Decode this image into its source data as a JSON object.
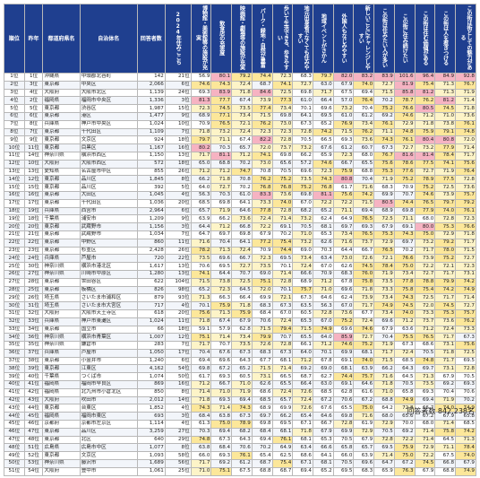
{
  "headers": [
    "順位",
    "昨年",
    "都道府県名",
    "自治体名",
    "回答者数",
    "2024年住みここち",
    "博物館・美術館等の施設が充実",
    "飲食店の充実度",
    "映画館・劇場等の施設が充実",
    "パーク・緑地・自然が豊富",
    "歩いて生活できる、歩きやすい",
    "地元出身者でなくても住みやすい",
    "地域イベントがさかん",
    "外国人もなじみやすい",
    "新しいことにチャレンジしやすい",
    "この街は住みたい人が多い",
    "この街に住み続けたい",
    "この街は住む価値がある",
    "この街は人を惹きつける",
    "この街は街としての魅力がある"
  ],
  "rows": [
    [
      "1位",
      "1位",
      "沖縄県",
      "中頭郡北谷町",
      "142",
      "21位",
      "56.9",
      "80.1",
      "79.2",
      "74.4",
      "72.3",
      "68.3",
      "79.7",
      "82.0",
      "83.2",
      "83.9",
      "101.6",
      "96.4",
      "84.9",
      "92.8"
    ],
    [
      "2位",
      "3位",
      "東京都",
      "中央区",
      "2,066",
      "6位",
      "74.6",
      "74.3",
      "72.4",
      "68.7",
      "74.1",
      "72.7",
      "63.0",
      "67.9",
      "74.0",
      "72.7",
      "81.9",
      "75.4",
      "71.3",
      "76.7"
    ],
    [
      "3位",
      "4位",
      "大阪府",
      "大阪市北区",
      "1,139",
      "24位",
      "69.3",
      "83.9",
      "71.8",
      "84.6",
      "72.5",
      "69.8",
      "71.7",
      "67.5",
      "69.4",
      "71.5",
      "85.8",
      "81.2",
      "71.3",
      "71.9"
    ],
    [
      "4位",
      "2位",
      "福岡県",
      "福岡市中央区",
      "1,336",
      "3位",
      "81.3",
      "77.7",
      "67.4",
      "73.9",
      "77.3",
      "61.0",
      "66.4",
      "57.0",
      "76.4",
      "70.2",
      "78.7",
      "76.2",
      "81.2",
      "71.4"
    ],
    [
      "5位",
      "5位",
      "東京都",
      "渋谷区",
      "1,987",
      "15位",
      "72.3",
      "74.5",
      "73.5",
      "77.4",
      "73.4",
      "70.1",
      "69.6",
      "73.2",
      "70.4",
      "75.2",
      "76.6",
      "80.5",
      "74.5",
      "71.8"
    ],
    [
      "6位",
      "6位",
      "東京都",
      "港区",
      "1,477",
      "9位",
      "68.9",
      "77.1",
      "73.4",
      "71.5",
      "69.8",
      "64.1",
      "69.5",
      "61.0",
      "61.2",
      "69.2",
      "74.6",
      "71.2",
      "71.0",
      "73.6"
    ],
    [
      "7位",
      "8位",
      "兵庫県",
      "神戸市中央区",
      "1,024",
      "10位",
      "70.9",
      "76.5",
      "72.1",
      "76.2",
      "73.0",
      "67.3",
      "65.2",
      "76.9",
      "73.4",
      "76.1",
      "72.9",
      "71.8",
      "73.8",
      "76.1"
    ],
    [
      "8位",
      "7位",
      "東京都",
      "千代田区",
      "1,109",
      "7位",
      "71.8",
      "73.2",
      "72.4",
      "72.3",
      "72.3",
      "72.8",
      "74.2",
      "71.5",
      "76.2",
      "71.1",
      "74.8",
      "75.9",
      "79.1",
      "74.8"
    ],
    [
      "9位",
      "9位",
      "東京都",
      "文京区",
      "924",
      "18位",
      "79.7",
      "71.1",
      "67.4",
      "82.2",
      "72.8",
      "70.5",
      "66.5",
      "69.3",
      "73.6",
      "74.3",
      "76.1",
      "80.4",
      "80.8",
      "72.0"
    ],
    [
      "10位",
      "11位",
      "東京都",
      "目黒区",
      "1,167",
      "16位",
      "80.2",
      "70.3",
      "65.7",
      "72.0",
      "73.7",
      "73.2",
      "67.6",
      "61.2",
      "60.7",
      "67.3",
      "72.7",
      "73.2",
      "77.9",
      "71.4"
    ],
    [
      "11位",
      "14位",
      "神奈川県",
      "横浜市西区",
      "1,150",
      "13位",
      "71.7",
      "81.1",
      "71.2",
      "74.1",
      "69.8",
      "66.2",
      "65.9",
      "72.3",
      "68.0",
      "76.7",
      "81.6",
      "81.4",
      "78.4",
      "71.7"
    ],
    [
      "12位",
      "10位",
      "大阪府",
      "大阪市西区",
      "572",
      "18位",
      "65.0",
      "68.8",
      "70.2",
      "73.0",
      "65.6",
      "57.2",
      "74.6",
      "66.7",
      "65.5",
      "75.6",
      "78.6",
      "77.5",
      "74.1",
      "75.6"
    ],
    [
      "13位",
      "13位",
      "愛知県",
      "名古屋市中区",
      "855",
      "26位",
      "71.2",
      "71.2",
      "74.7",
      "70.8",
      "70.5",
      "69.6",
      "72.3",
      "75.9",
      "68.8",
      "75.3",
      "77.6",
      "72.7",
      "71.9",
      "76.4"
    ],
    [
      "14位",
      "12位",
      "東京都",
      "品川区",
      "1,845",
      "8位",
      "66.2",
      "71.8",
      "70.8",
      "76.2",
      "75.2",
      "73.5",
      "74.3",
      "80.8",
      "70.4",
      "71.9",
      "75.2",
      "78.9",
      "77.5",
      "72.8"
    ],
    [
      "15位",
      "15位",
      "東京都",
      "品川区",
      "392",
      "5位",
      "64.0",
      "72.7",
      "70.2",
      "76.8",
      "76.8",
      "75.2",
      "76.8",
      "61.7",
      "71.6",
      "68.3",
      "70.9",
      "75.2",
      "72.5",
      "73.6"
    ],
    [
      "16位",
      "16位",
      "東京都",
      "大田区",
      "1,045",
      "4位",
      "56.3",
      "70.3",
      "61.0",
      "83.3",
      "73.6",
      "69.8",
      "81.1",
      "75.6",
      "74.2",
      "69.9",
      "70.7",
      "74.6",
      "73.9",
      "75.7"
    ],
    [
      "17位",
      "17位",
      "東京都",
      "千代田区",
      "1,036",
      "20位",
      "68.5",
      "69.8",
      "64.1",
      "73.3",
      "74.0",
      "67.0",
      "72.2",
      "72.2",
      "71.5",
      "80.5",
      "74.4",
      "76.5",
      "79.7",
      "79.2"
    ],
    [
      "18位",
      "19位",
      "兵庫県",
      "西宮市",
      "2,964",
      "6位",
      "65.7",
      "71.9",
      "64.6",
      "77.8",
      "72.8",
      "68.2",
      "65.2",
      "71.1",
      "69.4",
      "68.9",
      "69.8",
      "77.9",
      "74.0",
      "76.1"
    ],
    [
      "19位",
      "18位",
      "千葉県",
      "浦安市",
      "1,209",
      "9位",
      "63.9",
      "66.2",
      "73.6",
      "72.4",
      "71.4",
      "73.2",
      "62.4",
      "64.9",
      "76.5",
      "72.5",
      "71.1",
      "68.0",
      "72.8",
      "72.3"
    ],
    [
      "20位",
      "20位",
      "東京都",
      "武蔵野市",
      "1,156",
      "3位",
      "64.4",
      "71.2",
      "66.8",
      "72.2",
      "69.1",
      "70.5",
      "68.1",
      "69.7",
      "69.3",
      "67.9",
      "69.1",
      "80.0",
      "75.3",
      "76.6"
    ],
    [
      "21位",
      "21位",
      "東京都",
      "武蔵野市",
      "1,034",
      "7位",
      "64.7",
      "69.7",
      "69.8",
      "67.9",
      "70.2",
      "71.0",
      "65.3",
      "73.4",
      "76.5",
      "75.3",
      "74.3",
      "75.0",
      "72.9",
      "71.8"
    ],
    [
      "22位",
      "22位",
      "東京都",
      "中野区",
      "860",
      "11位",
      "71.6",
      "70.4",
      "64.1",
      "77.2",
      "75.4",
      "73.2",
      "62.6",
      "71.6",
      "73.7",
      "72.9",
      "69.7",
      "73.2",
      "79.2",
      "71.7"
    ],
    [
      "23位",
      "23位",
      "東京都",
      "杉並区",
      "2,428",
      "26位",
      "78.2",
      "71.3",
      "72.4",
      "70.9",
      "74.4",
      "69.0",
      "70.3",
      "64.4",
      "66.7",
      "76.5",
      "70.2",
      "71.7",
      "78.0",
      "71.5"
    ],
    [
      "24位",
      "24位",
      "兵庫県",
      "芦屋市",
      "720",
      "22位",
      "73.5",
      "69.6",
      "66.7",
      "72.3",
      "69.5",
      "73.4",
      "63.4",
      "73.0",
      "72.6",
      "72.1",
      "76.6",
      "73.9",
      "75.2",
      "72.7"
    ],
    [
      "25位",
      "30位",
      "神奈川県",
      "横浜市港北区",
      "1,617",
      "13位",
      "70.6",
      "69.5",
      "72.7",
      "73.5",
      "70.1",
      "72.4",
      "67.0",
      "62.6",
      "74.5",
      "78.4",
      "75.0",
      "72.2",
      "72.1",
      "72.3"
    ],
    [
      "26位",
      "27位",
      "神奈川県",
      "川崎市中原区",
      "1,280",
      "13位",
      "74.1",
      "64.4",
      "70.7",
      "69.0",
      "71.4",
      "66.6",
      "70.9",
      "68.3",
      "76.0",
      "71.9",
      "73.4",
      "72.7",
      "71.7",
      "73.1"
    ],
    [
      "27位",
      "28位",
      "東京都",
      "世田谷区",
      "622",
      "104位",
      "71.5",
      "73.8",
      "72.5",
      "75.1",
      "72.8",
      "68.9",
      "71.2",
      "67.8",
      "75.8",
      "73.5",
      "77.8",
      "78.8",
      "79.9",
      "74.2"
    ],
    [
      "28位",
      "25位",
      "東京都",
      "板橋区",
      "826",
      "98位",
      "65.2",
      "72.3",
      "64.5",
      "72.0",
      "70.1",
      "75.7",
      "71.0",
      "69.6",
      "71.8",
      "73.3",
      "75.8",
      "75.4",
      "74.2",
      "74.9"
    ],
    [
      "29位",
      "26位",
      "埼玉県",
      "さいたま市浦和区",
      "879",
      "93位",
      "71.3",
      "66.3",
      "66.4",
      "69.9",
      "72.1",
      "67.3",
      "64.6",
      "62.4",
      "73.9",
      "73.4",
      "74.3",
      "72.5",
      "71.7",
      "71.4"
    ],
    [
      "30位",
      "31位",
      "埼玉県",
      "さいたま市大宮区",
      "717",
      "4位",
      "70.1",
      "75.9",
      "71.8",
      "68.3",
      "67.3",
      "63.5",
      "56.3",
      "67.0",
      "71.7",
      "74.9",
      "74.5",
      "72.0",
      "74.5",
      "72.7"
    ],
    [
      "31位",
      "32位",
      "大阪府",
      "大阪市天王寺区",
      "618",
      "20位",
      "75.6",
      "71.3",
      "75.9",
      "68.4",
      "67.0",
      "60.5",
      "72.8",
      "73.6",
      "67.7",
      "73.4",
      "74.0",
      "73.3",
      "75.3",
      "75.7"
    ],
    [
      "32位",
      "33位",
      "兵庫県",
      "神戸市東灘区",
      "1,024",
      "11位",
      "71.8",
      "67.4",
      "67.9",
      "70.6",
      "72.4",
      "65.3",
      "67.0",
      "75.2",
      "72.4",
      "69.6",
      "71.2",
      "73.7",
      "73.6",
      "76.2"
    ],
    [
      "33位",
      "34位",
      "東京都",
      "国立市",
      "66",
      "18位",
      "59.1",
      "57.9",
      "62.8",
      "71.5",
      "79.4",
      "71.5",
      "74.9",
      "69.6",
      "74.6",
      "67.9",
      "63.6",
      "71.2",
      "72.4",
      "73.3"
    ],
    [
      "34位",
      "36位",
      "神奈川県",
      "横浜市青葉区",
      "1,007",
      "12位",
      "75.1",
      "71.4",
      "73.4",
      "79.9",
      "70.7",
      "65.5",
      "64.0",
      "85.9",
      "72.7",
      "70.4",
      "75.5",
      "76.5",
      "71.7",
      "67.3"
    ],
    [
      "35位",
      "35位",
      "神奈川県",
      "鎌倉市",
      "283",
      "7位",
      "71.7",
      "70.7",
      "73.5",
      "72.6",
      "72.8",
      "66.1",
      "71.2",
      "74.6",
      "75.2",
      "71.9",
      "67.3",
      "68.6",
      "73.1",
      "75.6"
    ],
    [
      "36位",
      "37位",
      "兵庫県",
      "芦屋市",
      "1,050",
      "17位",
      "70.4",
      "67.6",
      "67.3",
      "68.3",
      "67.3",
      "64.0",
      "70.1",
      "69.9",
      "68.1",
      "71.7",
      "72.4",
      "70.5",
      "71.8",
      "72.5"
    ],
    [
      "37位",
      "38位",
      "東京都",
      "小金井市",
      "1,240",
      "6位",
      "69.4",
      "69.6",
      "64.3",
      "67.7",
      "68.1",
      "71.2",
      "67.8",
      "69.1",
      "74.0",
      "71.5",
      "68.5",
      "74.8",
      "71.7",
      "69.5"
    ],
    [
      "38位",
      "39位",
      "東京都",
      "江東区",
      "4,162",
      "54位",
      "69.8",
      "67.2",
      "65.2",
      "71.5",
      "71.4",
      "69.2",
      "69.0",
      "68.1",
      "63.9",
      "66.2",
      "64.3",
      "69.7",
      "73.1",
      "72.8"
    ],
    [
      "39位",
      "40位",
      "千葉県",
      "つくば市",
      "1,074",
      "50位",
      "61.7",
      "69.3",
      "60.5",
      "73.1",
      "66.5",
      "68.7",
      "62.7",
      "74.4",
      "75.7",
      "71.6",
      "64.5",
      "71.3",
      "67.9",
      "70.5"
    ],
    [
      "40位",
      "41位",
      "福岡県",
      "福岡市早良区",
      "869",
      "16位",
      "71.2",
      "66.7",
      "71.0",
      "62.6",
      "65.5",
      "66.4",
      "63.0",
      "69.1",
      "64.6",
      "71.8",
      "70.5",
      "73.5",
      "69.2",
      "69.3"
    ],
    [
      "41位",
      "42位",
      "福岡県",
      "北九州市小倉北区",
      "850",
      "8位",
      "71.4",
      "71.0",
      "71.9",
      "68.6",
      "72.4",
      "72.6",
      "68.5",
      "62.8",
      "61.6",
      "71.0",
      "65.8",
      "69.3",
      "70.4",
      "70.6"
    ],
    [
      "42位",
      "43位",
      "大阪府",
      "吹田市",
      "2,012",
      "14位",
      "71.8",
      "69.3",
      "69.4",
      "68.5",
      "65.7",
      "72.4",
      "67.2",
      "70.6",
      "67.2",
      "68.8",
      "74.9",
      "69.4",
      "71.9",
      "70.2"
    ],
    [
      "43位",
      "44位",
      "東京都",
      "台東区",
      "1,852",
      "4位",
      "74.3",
      "71.4",
      "74.3",
      "68.9",
      "69.9",
      "72.6",
      "67.6",
      "65.5",
      "75.0",
      "64.2",
      "72.8",
      "66.7",
      "74.0",
      "74.9"
    ],
    [
      "44位",
      "45位",
      "福岡県",
      "福岡市東区",
      "693",
      "3位",
      "68.4",
      "63.8",
      "67.3",
      "69.7",
      "66.2",
      "65.4",
      "64.6",
      "69.8",
      "71.6",
      "68.0",
      "65.6",
      "67.2",
      "67.9",
      "65.8"
    ],
    [
      "45位",
      "46位",
      "京都府",
      "京都市左京区",
      "1,114",
      "4位",
      "61.3",
      "75.0",
      "78.9",
      "69.8",
      "69.5",
      "67.1",
      "66.7",
      "72.8",
      "61.9",
      "72.9",
      "70.0",
      "68.0",
      "71.4",
      "68.5"
    ],
    [
      "46位",
      "47位",
      "東京都",
      "品川区",
      "3,259",
      "27位",
      "70.3",
      "69.4",
      "68.2",
      "68.4",
      "68.1",
      "71.8",
      "67.9",
      "69.9",
      "72.9",
      "70.5",
      "69.2",
      "71.4",
      "75.8",
      "74.2"
    ],
    [
      "47位",
      "48位",
      "東京都",
      "北区",
      "640",
      "29位",
      "74.8",
      "67.3",
      "64.3",
      "69.4",
      "76.1",
      "68.1",
      "65.3",
      "70.5",
      "67.9",
      "72.8",
      "72.2",
      "71.4",
      "64.5",
      "71.3"
    ],
    [
      "48位",
      "51位",
      "広島県",
      "広島市中区",
      "1,077",
      "8位",
      "63.8",
      "68.4",
      "70.6",
      "70.2",
      "64.9",
      "63.4",
      "66.6",
      "65.8",
      "65.7",
      "69.5",
      "75.9",
      "72.9",
      "71.1",
      "78.4"
    ],
    [
      "49位",
      "52位",
      "東京都",
      "文京区",
      "1,093",
      "58位",
      "66.0",
      "69.3",
      "76.1",
      "65.4",
      "62.5",
      "68.6",
      "64.1",
      "66.0",
      "63.9",
      "71.4",
      "75.0",
      "72.2",
      "67.5",
      "74.0"
    ],
    [
      "50位",
      "53位",
      "神奈川県",
      "藤沢市",
      "1,689",
      "56位",
      "71.7",
      "69.2",
      "61.2",
      "68.7",
      "75.4",
      "67.1",
      "68.1",
      "70.5",
      "69.6",
      "64.7",
      "67.2",
      "74.5",
      "66.8",
      "67.9"
    ],
    [
      "51位",
      "54位",
      "大阪府",
      "豊中市",
      "1,061",
      "25位",
      "71.0",
      "75.1",
      "67.5",
      "68.8",
      "68.7",
      "69.4",
      "65.2",
      "69.5",
      "68.3",
      "65.9",
      "76.3",
      "67.9",
      "68.8",
      "74.9"
    ]
  ],
  "footer": "回答者数 842,238名",
  "colors": {
    "header_bg": "#1f3f8f",
    "hi_pink": "#f6b3c2",
    "hi_yellow": "#fce79a",
    "hi_light": "#fdf4c8"
  }
}
